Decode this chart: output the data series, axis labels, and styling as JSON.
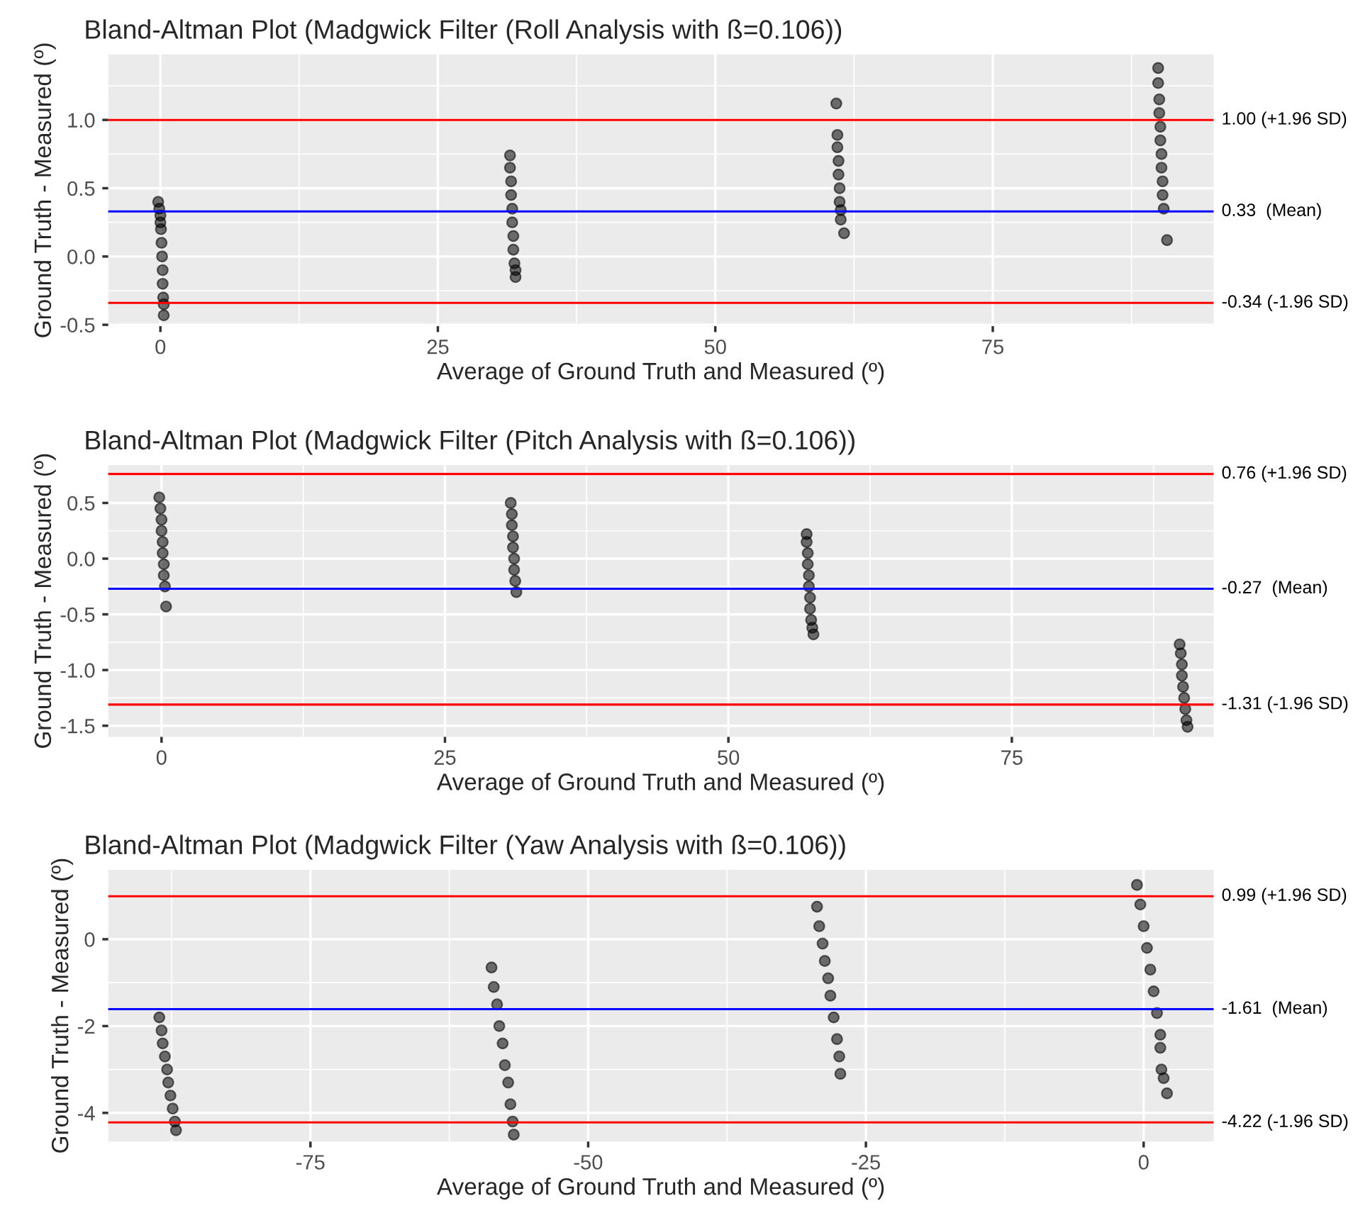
{
  "chart_data": [
    {
      "type": "scatter",
      "title": "Bland-Altman Plot (Madgwick Filter (Roll Analysis with ß=0.106))",
      "xlabel": "Average of Ground Truth and Measured (º)",
      "ylabel": "Ground Truth - Measured (º)",
      "xlim": [
        -4.7,
        94.9
      ],
      "ylim": [
        -0.51,
        1.48
      ],
      "xticks": [
        0,
        25,
        50,
        75
      ],
      "yticks": [
        -0.5,
        {
          "value": 0,
          "label": "0.0"
        },
        0.5,
        {
          "value": 1,
          "label": "1.0"
        }
      ],
      "grid": true,
      "marker": "circle",
      "series": [
        {
          "color": "#000000",
          "x": [
            -0.2,
            -0.1,
            0,
            0,
            0.05,
            0.1,
            0.15,
            0.2,
            0.2,
            0.25,
            0.3,
            0.3,
            31.5,
            31.5,
            31.6,
            31.6,
            31.7,
            31.7,
            31.8,
            31.8,
            31.9,
            32.0,
            32.0,
            60.9,
            61.0,
            61.0,
            61.1,
            61.1,
            61.2,
            61.2,
            61.3,
            61.3,
            61.6,
            89.9,
            89.9,
            90.0,
            90.0,
            90.1,
            90.1,
            90.2,
            90.2,
            90.3,
            90.3,
            90.4,
            90.7
          ],
          "values": [
            0.4,
            0.35,
            0.3,
            0.25,
            0.2,
            0.1,
            0.0,
            -0.1,
            -0.2,
            -0.3,
            -0.35,
            -0.43,
            0.74,
            0.65,
            0.55,
            0.45,
            0.35,
            0.25,
            0.15,
            0.05,
            -0.05,
            -0.1,
            -0.15,
            1.12,
            0.89,
            0.8,
            0.7,
            0.6,
            0.5,
            0.4,
            0.34,
            0.27,
            0.17,
            1.38,
            1.27,
            1.15,
            1.05,
            0.95,
            0.85,
            0.75,
            0.65,
            0.55,
            0.45,
            0.35,
            0.12
          ]
        }
      ],
      "ref_lines": [
        {
          "axis": "y",
          "value": 1.0,
          "label": "1.00 (+1.96 SD)",
          "color": "#ff0000"
        },
        {
          "axis": "y",
          "value": 0.33,
          "label": "0.33  (Mean)",
          "color": "#0000ff"
        },
        {
          "axis": "y",
          "value": -0.34,
          "label": "-0.34 (-1.96 SD)",
          "color": "#ff0000"
        }
      ]
    },
    {
      "type": "scatter",
      "title": "Bland-Altman Plot (Madgwick Filter (Pitch Analysis with ß=0.106))",
      "xlabel": "Average of Ground Truth and Measured (º)",
      "ylabel": "Ground Truth - Measured (º)",
      "xlim": [
        -4.7,
        92.8
      ],
      "ylim": [
        -1.6,
        0.84
      ],
      "xticks": [
        0,
        25,
        50,
        75
      ],
      "yticks": [
        -1.5,
        {
          "value": -1,
          "label": "-1.0"
        },
        -0.5,
        {
          "value": 0,
          "label": "0.0"
        },
        0.5
      ],
      "grid": true,
      "marker": "circle",
      "series": [
        {
          "color": "#000000",
          "x": [
            -0.2,
            -0.1,
            0,
            0,
            0.1,
            0.1,
            0.2,
            0.2,
            0.3,
            0.4,
            30.8,
            30.9,
            30.9,
            31.0,
            31.0,
            31.1,
            31.1,
            31.2,
            31.3,
            56.9,
            56.9,
            57.0,
            57.0,
            57.1,
            57.1,
            57.2,
            57.2,
            57.3,
            57.4,
            57.5,
            89.8,
            89.9,
            90.0,
            90.0,
            90.1,
            90.2,
            90.3,
            90.4,
            90.5
          ],
          "values": [
            0.55,
            0.45,
            0.35,
            0.25,
            0.15,
            0.05,
            -0.05,
            -0.15,
            -0.25,
            -0.43,
            0.5,
            0.4,
            0.3,
            0.2,
            0.1,
            0.0,
            -0.1,
            -0.2,
            -0.3,
            0.22,
            0.15,
            0.05,
            -0.05,
            -0.15,
            -0.25,
            -0.35,
            -0.45,
            -0.55,
            -0.62,
            -0.68,
            -0.77,
            -0.85,
            -0.95,
            -1.05,
            -1.15,
            -1.25,
            -1.35,
            -1.45,
            -1.51
          ]
        }
      ],
      "ref_lines": [
        {
          "axis": "y",
          "value": 0.76,
          "label": "0.76 (+1.96 SD)",
          "color": "#ff0000"
        },
        {
          "axis": "y",
          "value": -0.27,
          "label": "-0.27  (Mean)",
          "color": "#0000ff"
        },
        {
          "axis": "y",
          "value": -1.31,
          "label": "-1.31 (-1.96 SD)",
          "color": "#ff0000"
        }
      ]
    },
    {
      "type": "scatter",
      "title": "Bland-Altman Plot (Madgwick Filter (Yaw Analysis with ß=0.106))",
      "xlabel": "Average of Ground Truth and Measured (º)",
      "ylabel": "Ground Truth - Measured (º)",
      "xlim": [
        -93.2,
        6.3
      ],
      "ylim": [
        -4.66,
        1.6
      ],
      "xticks": [
        -75,
        -50,
        -25,
        0
      ],
      "yticks": [
        -4,
        -2,
        0
      ],
      "grid": true,
      "marker": "circle",
      "series": [
        {
          "color": "#000000",
          "x": [
            -88.6,
            -88.4,
            -88.3,
            -88.1,
            -87.9,
            -87.8,
            -87.6,
            -87.4,
            -87.2,
            -87.1,
            -58.7,
            -58.5,
            -58.2,
            -58.0,
            -57.7,
            -57.5,
            -57.2,
            -57.0,
            -56.8,
            -56.7,
            -29.4,
            -29.2,
            -28.9,
            -28.7,
            -28.4,
            -28.2,
            -27.9,
            -27.6,
            -27.4,
            -27.3,
            -0.6,
            -0.3,
            0.0,
            0.3,
            0.6,
            0.9,
            1.2,
            1.5,
            1.5,
            1.6,
            1.8,
            2.1
          ],
          "values": [
            -1.8,
            -2.1,
            -2.4,
            -2.7,
            -3.0,
            -3.3,
            -3.6,
            -3.9,
            -4.2,
            -4.4,
            -0.65,
            -1.1,
            -1.5,
            -2.0,
            -2.4,
            -2.9,
            -3.3,
            -3.8,
            -4.2,
            -4.5,
            0.75,
            0.3,
            -0.1,
            -0.5,
            -0.9,
            -1.3,
            -1.8,
            -2.3,
            -2.7,
            -3.1,
            1.25,
            0.8,
            0.3,
            -0.2,
            -0.7,
            -1.2,
            -1.7,
            -2.2,
            -2.5,
            -3.0,
            -3.2,
            -3.55
          ]
        }
      ],
      "ref_lines": [
        {
          "axis": "y",
          "value": 0.99,
          "label": "0.99 (+1.96 SD)",
          "color": "#ff0000"
        },
        {
          "axis": "y",
          "value": -1.61,
          "label": "-1.61  (Mean)",
          "color": "#0000ff"
        },
        {
          "axis": "y",
          "value": -4.22,
          "label": "-4.22 (-1.96 SD)",
          "color": "#ff0000"
        }
      ]
    }
  ]
}
